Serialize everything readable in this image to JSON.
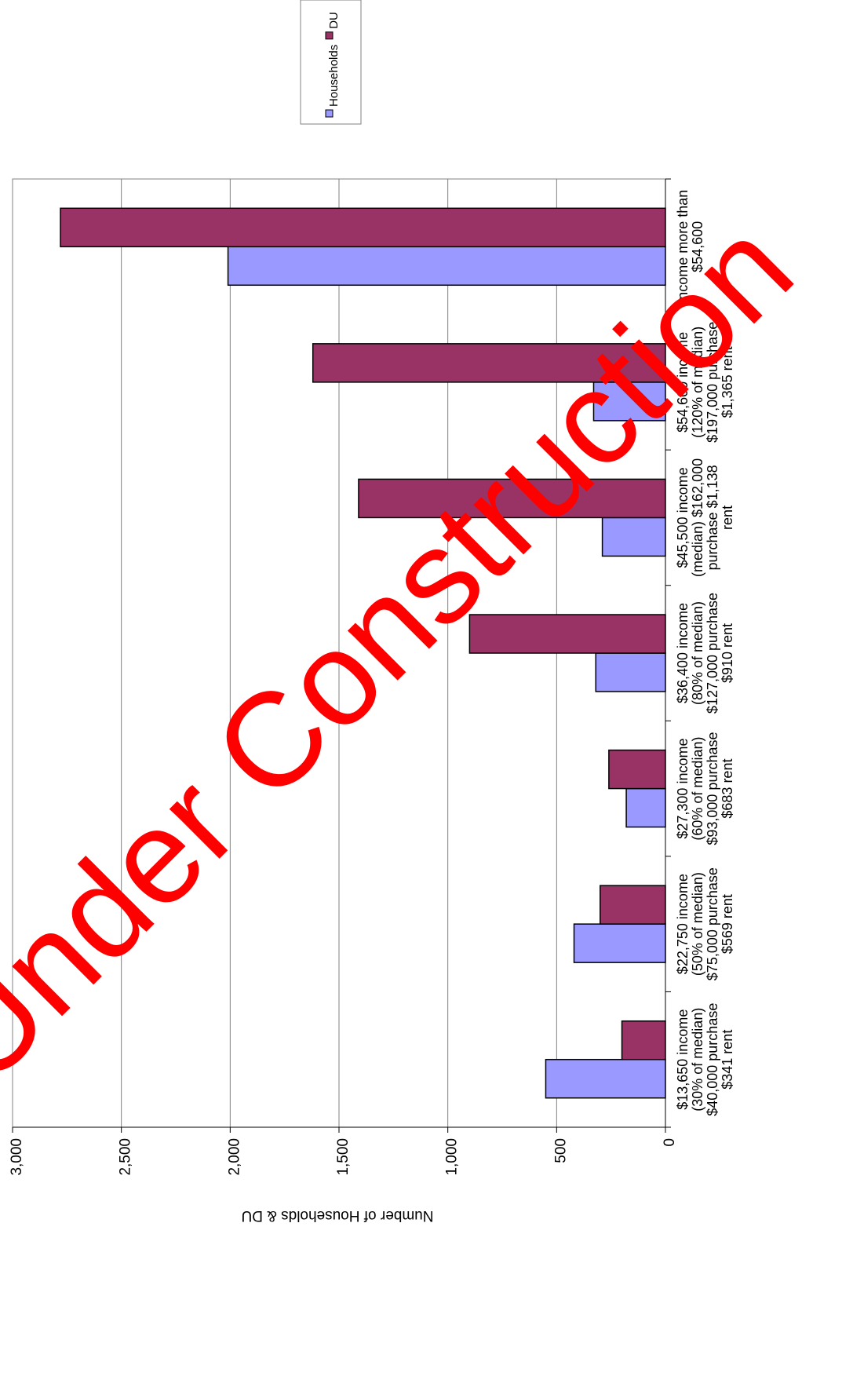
{
  "chart_data": {
    "type": "bar",
    "y_label": "Number of Households & DU",
    "watermark": "Under Construction",
    "categories": [
      "$13,650 income\n(30% of median)\n$40,000 purchase\n$341 rent",
      "$22,750 income\n(50% of median)\n$75,000 purchase\n$569 rent",
      "$27,300 income\n(60% of median)\n$93,000 purchase\n$683 rent",
      "$36,400 income\n(80% of median)\n$127,000 purchase\n$910 rent",
      "$45,500 income\n(median) $162,000\npurchase $1,138\nrent",
      "$54,600 income\n(120% of median)\n$197,000 purchase\n$1,365 rent",
      "Income more than\n$54,600"
    ],
    "series": [
      {
        "name": "Households",
        "color": "#9999ff",
        "values": [
          550,
          420,
          180,
          320,
          290,
          330,
          2010
        ]
      },
      {
        "name": "DU",
        "color": "#993366",
        "values": [
          200,
          300,
          260,
          900,
          1410,
          1620,
          2780
        ]
      }
    ],
    "ylim": [
      0,
      3000
    ],
    "yticks": [
      0,
      500,
      {
        "value": 1000,
        "label": "1,000"
      },
      {
        "value": 1500,
        "label": "1,500"
      },
      {
        "value": 2000,
        "label": "2,000"
      },
      {
        "value": 2500,
        "label": "2,500"
      },
      {
        "value": 3000,
        "label": "3,000"
      }
    ],
    "grid": true
  }
}
